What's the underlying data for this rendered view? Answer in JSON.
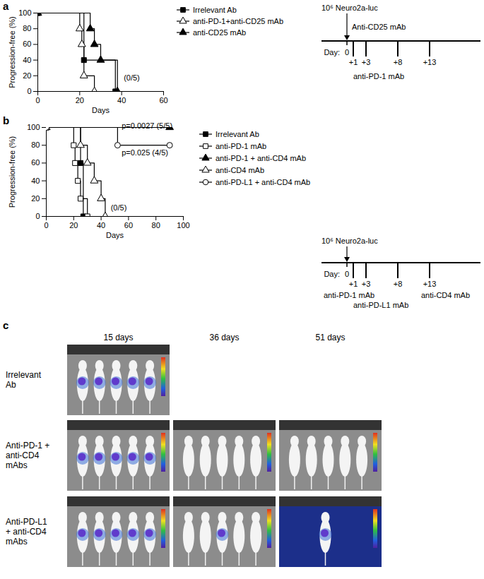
{
  "chart_data": [
    {
      "type": "line",
      "panel_label": "a",
      "xlabel": "Days",
      "ylabel": "Progression-free (%)",
      "xlim": [
        0,
        60
      ],
      "xticks": [
        0,
        20,
        40,
        60
      ],
      "ylim": [
        0,
        100
      ],
      "yticks": [
        0,
        20,
        40,
        60,
        80,
        100
      ],
      "line_style": "step",
      "legend": "right",
      "series": [
        {
          "name": "Irrelevant Ab",
          "color": "#000000",
          "marker": "square",
          "x": [
            0,
            22,
            37
          ],
          "values": [
            100,
            40,
            0
          ]
        },
        {
          "name": "anti-PD-1+anti-CD25 mAb",
          "color": "#000000",
          "marker": "triangle-open",
          "x": [
            0,
            20,
            21,
            22,
            27
          ],
          "values": [
            100,
            80,
            60,
            20,
            0
          ]
        },
        {
          "name": "anti-CD25 mAb",
          "color": "#000000",
          "marker": "triangle",
          "x": [
            0,
            25,
            27,
            30,
            38
          ],
          "values": [
            100,
            80,
            60,
            40,
            0
          ]
        }
      ],
      "annotations": [
        {
          "text": "(0/5)",
          "x": 41,
          "y": 15
        }
      ],
      "timeline": {
        "title": "10⁶ Neuro2a-luc",
        "day_label": "Day:",
        "xlim": [
          -4,
          21
        ],
        "ticks": [
          {
            "value": 0,
            "label": "0"
          },
          {
            "value": 1,
            "label": "+1"
          },
          {
            "value": 3,
            "label": "+3"
          },
          {
            "value": 8,
            "label": "+8"
          },
          {
            "value": 13,
            "label": "+13"
          }
        ],
        "treatments": [
          "Anti-CD25 mAb",
          "anti-PD-1 mAb"
        ]
      }
    },
    {
      "type": "line",
      "panel_label": "b",
      "xlabel": "Days",
      "ylabel": "Progression-free (%)",
      "xlim": [
        0,
        100
      ],
      "xticks": [
        0,
        20,
        40,
        60,
        80,
        100
      ],
      "ylim": [
        0,
        100
      ],
      "yticks": [
        0,
        20,
        40,
        60,
        80,
        100
      ],
      "line_style": "step",
      "legend": "right",
      "series": [
        {
          "name": "Irrelevant Ab",
          "color": "#000000",
          "marker": "square",
          "x": [
            0,
            25,
            27
          ],
          "values": [
            100,
            60,
            0
          ]
        },
        {
          "name": "anti-PD-1 mAb",
          "color": "#000000",
          "marker": "square-open",
          "x": [
            0,
            20,
            21,
            23,
            25,
            30
          ],
          "values": [
            100,
            80,
            60,
            40,
            20,
            0
          ]
        },
        {
          "name": "anti-PD-1 + anti-CD4 mAb",
          "color": "#000000",
          "marker": "triangle",
          "x": [
            0,
            90
          ],
          "values": [
            100,
            100
          ]
        },
        {
          "name": "anti-CD4 mAb",
          "color": "#000000",
          "marker": "triangle-open",
          "x": [
            0,
            25,
            30,
            35,
            40,
            43
          ],
          "values": [
            100,
            80,
            60,
            40,
            20,
            0
          ]
        },
        {
          "name": "anti-PD-L1 + anti-CD4 mAb",
          "color": "#000000",
          "marker": "circle-open",
          "x": [
            0,
            52,
            90
          ],
          "values": [
            100,
            80,
            80
          ]
        }
      ],
      "annotations": [
        {
          "text": "p=0.0027 (5/5)",
          "x": 55,
          "y": 100
        },
        {
          "text": "p=0.025 (4/5)",
          "x": 55,
          "y": 70
        },
        {
          "text": "(0/5)",
          "x": 47,
          "y": 8
        }
      ],
      "timeline": {
        "title": "10⁶ Neuro2a-luc",
        "day_label": "Day:",
        "xlim": [
          -4,
          21
        ],
        "ticks": [
          {
            "value": 0,
            "label": "0"
          },
          {
            "value": 1,
            "label": "+1"
          },
          {
            "value": 3,
            "label": "+3"
          },
          {
            "value": 8,
            "label": "+8"
          },
          {
            "value": 13,
            "label": "+13"
          }
        ],
        "treatments": [
          "anti-PD-1 mAb",
          "anti-CD4 mAb",
          "anti-PD-L1 mAb"
        ]
      }
    }
  ],
  "imaging": {
    "panel_label": "c",
    "columns": [
      "15 days",
      "36 days",
      "51 days"
    ],
    "rows": [
      {
        "label": "Irrelevant Ab",
        "images": [
          {
            "signal": [
              true,
              true,
              true,
              true,
              true
            ]
          },
          null,
          null
        ]
      },
      {
        "label": "Anti-PD-1 + anti-CD4 mAbs",
        "images": [
          {
            "signal": [
              true,
              true,
              true,
              true,
              true
            ]
          },
          {
            "signal": [
              false,
              false,
              false,
              false,
              false
            ]
          },
          {
            "signal": [
              false,
              false,
              false,
              false,
              false
            ]
          }
        ]
      },
      {
        "label": "Anti-PD-L1 + anti-CD4 mAbs",
        "images": [
          {
            "signal": [
              true,
              true,
              true,
              true,
              true
            ]
          },
          {
            "signal": [
              false,
              false,
              true,
              false,
              false
            ]
          },
          {
            "signal": [
              true
            ]
          }
        ]
      }
    ]
  }
}
